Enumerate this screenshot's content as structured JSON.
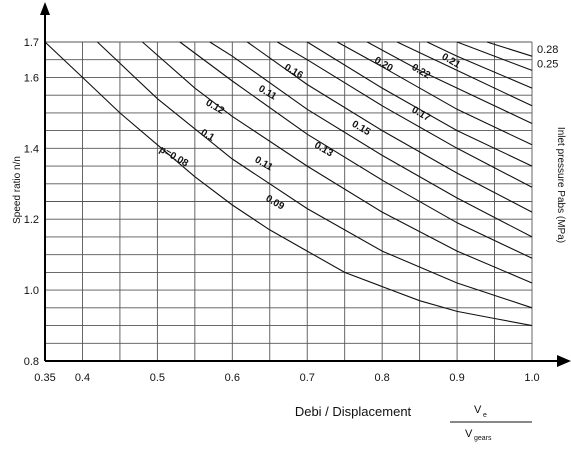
{
  "chart_data": {
    "type": "line",
    "title": "",
    "xlabel": "Debi / Displacement",
    "ylabel": "Speed ratio n/n",
    "y2label": "Inlet pressure Pabs (MPa)",
    "xlim": [
      0.35,
      1.0
    ],
    "ylim": [
      0.8,
      1.7
    ],
    "x_ticks": [
      "0.35",
      "0.4",
      "0.5",
      "0.6",
      "0.7",
      "0.8",
      "0.9",
      "1.0"
    ],
    "y_ticks": [
      "0.8",
      "1.0",
      "1.2",
      "1.4",
      "1.6",
      "1.7"
    ],
    "fraction": {
      "numerator": "V",
      "numerator_sub": "e",
      "denominator": "V",
      "denominator_sub": "gears"
    },
    "grid": true,
    "series": [
      {
        "name": "p=0.08",
        "points": [
          [
            0.35,
            1.7
          ],
          [
            0.4,
            1.6
          ],
          [
            0.45,
            1.5
          ],
          [
            0.5,
            1.41
          ],
          [
            0.55,
            1.32
          ],
          [
            0.6,
            1.24
          ],
          [
            0.65,
            1.17
          ],
          [
            0.7,
            1.11
          ],
          [
            0.75,
            1.05
          ],
          [
            0.8,
            1.01
          ],
          [
            0.85,
            0.97
          ],
          [
            0.9,
            0.94
          ],
          [
            0.95,
            0.92
          ],
          [
            1.0,
            0.9
          ]
        ]
      },
      {
        "name": "0.09",
        "points": [
          [
            0.42,
            1.7
          ],
          [
            0.5,
            1.54
          ],
          [
            0.6,
            1.37
          ],
          [
            0.7,
            1.23
          ],
          [
            0.8,
            1.11
          ],
          [
            0.9,
            1.02
          ],
          [
            1.0,
            0.95
          ]
        ]
      },
      {
        "name": "0.1",
        "points": [
          [
            0.48,
            1.7
          ],
          [
            0.55,
            1.57
          ],
          [
            0.6,
            1.49
          ],
          [
            0.7,
            1.35
          ],
          [
            0.8,
            1.22
          ],
          [
            0.9,
            1.11
          ],
          [
            1.0,
            1.02
          ]
        ]
      },
      {
        "name": "0.11",
        "points": [
          [
            0.53,
            1.7
          ],
          [
            0.6,
            1.59
          ],
          [
            0.7,
            1.44
          ],
          [
            0.8,
            1.31
          ],
          [
            0.9,
            1.19
          ],
          [
            1.0,
            1.09
          ]
        ]
      },
      {
        "name": "0.12",
        "points": [
          [
            0.57,
            1.7
          ],
          [
            0.6,
            1.66
          ],
          [
            0.7,
            1.51
          ],
          [
            0.8,
            1.38
          ],
          [
            0.9,
            1.26
          ],
          [
            1.0,
            1.15
          ]
        ]
      },
      {
        "name": "0.13",
        "points": [
          [
            0.62,
            1.7
          ],
          [
            0.7,
            1.58
          ],
          [
            0.8,
            1.45
          ],
          [
            0.9,
            1.33
          ],
          [
            1.0,
            1.22
          ]
        ]
      },
      {
        "name": "0.15",
        "points": [
          [
            0.66,
            1.7
          ],
          [
            0.7,
            1.65
          ],
          [
            0.8,
            1.52
          ],
          [
            0.9,
            1.4
          ],
          [
            1.0,
            1.29
          ]
        ]
      },
      {
        "name": "0.16",
        "points": [
          [
            0.7,
            1.7
          ],
          [
            0.8,
            1.57
          ],
          [
            0.9,
            1.45
          ],
          [
            1.0,
            1.35
          ]
        ]
      },
      {
        "name": "0.17",
        "points": [
          [
            0.74,
            1.7
          ],
          [
            0.8,
            1.63
          ],
          [
            0.9,
            1.51
          ],
          [
            1.0,
            1.41
          ]
        ]
      },
      {
        "name": "0.20",
        "points": [
          [
            0.78,
            1.7
          ],
          [
            0.85,
            1.62
          ],
          [
            0.9,
            1.57
          ],
          [
            1.0,
            1.47
          ]
        ]
      },
      {
        "name": "0.22",
        "points": [
          [
            0.82,
            1.7
          ],
          [
            0.9,
            1.62
          ],
          [
            1.0,
            1.52
          ]
        ]
      },
      {
        "name": "0.21",
        "points": [
          [
            0.86,
            1.7
          ],
          [
            0.9,
            1.66
          ],
          [
            1.0,
            1.57
          ]
        ]
      },
      {
        "name": "0.25",
        "points": [
          [
            0.9,
            1.7
          ],
          [
            1.0,
            1.62
          ]
        ]
      },
      {
        "name": "0.28",
        "points": [
          [
            0.94,
            1.7
          ],
          [
            1.0,
            1.66
          ]
        ]
      }
    ],
    "curve_labels": [
      {
        "text": "p=0.08",
        "x": 0.52,
        "y": 1.37,
        "angle": 30
      },
      {
        "text": "0.1",
        "x": 0.565,
        "y": 1.43,
        "angle": 30
      },
      {
        "text": "0.12",
        "x": 0.575,
        "y": 1.51,
        "angle": 30
      },
      {
        "text": "0.11",
        "x": 0.645,
        "y": 1.55,
        "angle": 30
      },
      {
        "text": "0.16",
        "x": 0.68,
        "y": 1.61,
        "angle": 30
      },
      {
        "text": "0.11",
        "x": 0.64,
        "y": 1.35,
        "angle": 30
      },
      {
        "text": "0.09",
        "x": 0.655,
        "y": 1.24,
        "angle": 30
      },
      {
        "text": "0.13",
        "x": 0.72,
        "y": 1.39,
        "angle": 30
      },
      {
        "text": "0.15",
        "x": 0.77,
        "y": 1.45,
        "angle": 30
      },
      {
        "text": "0.20",
        "x": 0.8,
        "y": 1.63,
        "angle": 30
      },
      {
        "text": "0.22",
        "x": 0.85,
        "y": 1.61,
        "angle": 30
      },
      {
        "text": "0.17",
        "x": 0.85,
        "y": 1.49,
        "angle": 30
      },
      {
        "text": "0.21",
        "x": 0.89,
        "y": 1.64,
        "angle": 30
      }
    ],
    "right_labels": [
      {
        "text": "0.28",
        "y": 1.68
      },
      {
        "text": "0.25",
        "y": 1.64
      }
    ]
  }
}
